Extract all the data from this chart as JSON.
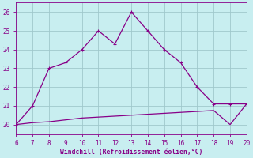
{
  "x_main": [
    6,
    7,
    8,
    9,
    10,
    11,
    12,
    13,
    14,
    15,
    16,
    17,
    18,
    19,
    20
  ],
  "y_main": [
    20,
    21,
    23,
    23.3,
    24,
    25,
    24.3,
    26,
    25,
    24,
    23.3,
    22,
    21.1,
    21.1,
    21.1
  ],
  "x_second": [
    6,
    7,
    8,
    9,
    10,
    11,
    12,
    13,
    14,
    15,
    16,
    17,
    18,
    19,
    20
  ],
  "y_second": [
    20,
    20.1,
    20.15,
    20.25,
    20.35,
    20.4,
    20.45,
    20.5,
    20.55,
    20.6,
    20.65,
    20.7,
    20.75,
    20.0,
    21.1
  ],
  "line_color": "#880088",
  "bg_color": "#c8eef0",
  "grid_color": "#a0c8cc",
  "xlabel": "Windchill (Refroidissement éolien,°C)",
  "xlim": [
    6,
    20
  ],
  "ylim": [
    19.5,
    26.5
  ],
  "xticks": [
    6,
    7,
    8,
    9,
    10,
    11,
    12,
    13,
    14,
    15,
    16,
    17,
    18,
    19,
    20
  ],
  "yticks": [
    20,
    21,
    22,
    23,
    24,
    25,
    26
  ],
  "marker_x": [
    6,
    7,
    8,
    9,
    10,
    11,
    12,
    13,
    14,
    15,
    16,
    17,
    18,
    19,
    20
  ],
  "marker_y": [
    20,
    21,
    23,
    23.3,
    24,
    25,
    24.3,
    26,
    25,
    24,
    23.3,
    22,
    21.1,
    21.1,
    21.1
  ]
}
